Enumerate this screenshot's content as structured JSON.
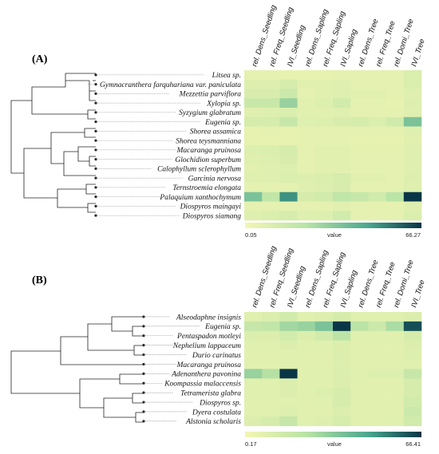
{
  "colors": {
    "low": "#f4f6b3",
    "mid1": "#b8e3a6",
    "mid2": "#49a78e",
    "high": "#083446",
    "tree": "#222222",
    "connector": "#666666"
  },
  "chart_data": [
    {
      "type": "heatmap",
      "panel_label": "(A)",
      "columns": [
        "rel. Dens_Seedling",
        "rel. Freq_Seedling",
        "IVI_Seedling",
        "rel. Dens_Sapling",
        "rel. Freq_Sapling",
        "IVI_Sapling",
        "rel. Dens_Tree",
        "rel. Freq_Tree",
        "rel. Domi_Tree",
        "IVI_Tree"
      ],
      "rows": [
        {
          "label": "Litsea sp.",
          "values": [
            6,
            6,
            5,
            5,
            5,
            6,
            6,
            6,
            6,
            10
          ]
        },
        {
          "label": "Gymnacranthera farquhariana  var. paniculata",
          "values": [
            9,
            9,
            12,
            7,
            7,
            8,
            6,
            6,
            6,
            10
          ]
        },
        {
          "label": "Mezzettia parviflora",
          "values": [
            11,
            11,
            16,
            6,
            7,
            8,
            7,
            7,
            6,
            8
          ]
        },
        {
          "label": "Xylopia sp.",
          "values": [
            17,
            17,
            30,
            7,
            9,
            14,
            6,
            6,
            5,
            9
          ]
        },
        {
          "label": "Syzygium glabratum",
          "values": [
            8,
            9,
            10,
            7,
            7,
            8,
            6,
            6,
            6,
            8
          ]
        },
        {
          "label": "Eugenia sp.",
          "values": [
            12,
            12,
            18,
            8,
            9,
            11,
            12,
            10,
            14,
            36
          ]
        },
        {
          "label": "Shorea assamica",
          "values": [
            5,
            6,
            5,
            6,
            6,
            6,
            6,
            6,
            6,
            8
          ]
        },
        {
          "label": "Shorea teysmanniana",
          "values": [
            5,
            5,
            5,
            6,
            6,
            6,
            5,
            5,
            5,
            7
          ]
        },
        {
          "label": "Macaranga pruinosa",
          "values": [
            9,
            10,
            12,
            6,
            7,
            7,
            6,
            6,
            6,
            8
          ]
        },
        {
          "label": "Glochidion superbum",
          "values": [
            8,
            9,
            11,
            6,
            7,
            7,
            6,
            6,
            6,
            8
          ]
        },
        {
          "label": "Calophyllum sclerophyllum",
          "values": [
            7,
            8,
            9,
            6,
            7,
            7,
            6,
            6,
            6,
            8
          ]
        },
        {
          "label": "Garcinia nervosa",
          "values": [
            8,
            8,
            10,
            9,
            10,
            12,
            7,
            7,
            6,
            9
          ]
        },
        {
          "label": "Ternstroemia elongata",
          "values": [
            6,
            6,
            6,
            8,
            9,
            11,
            6,
            6,
            6,
            8
          ]
        },
        {
          "label": "Palaquium xanthochymum",
          "values": [
            36,
            20,
            50,
            12,
            14,
            20,
            18,
            14,
            22,
            66
          ]
        },
        {
          "label": "Diospyros maingayi",
          "values": [
            6,
            6,
            6,
            6,
            6,
            7,
            6,
            6,
            6,
            8
          ]
        },
        {
          "label": "Diospyros siamang",
          "values": [
            8,
            10,
            12,
            8,
            9,
            14,
            6,
            6,
            6,
            10
          ]
        }
      ],
      "legend": {
        "min": 0.05,
        "max": 66.27,
        "min_label": "0.05",
        "max_label": "66.27",
        "title": "value"
      }
    },
    {
      "type": "heatmap",
      "panel_label": "(B)",
      "columns": [
        "rel. Dens_Seedling",
        "rel. Freq_Seedling",
        "IVI_Seedling",
        "rel. Dens_Sapling",
        "rel. Freq_Sapling",
        "IVI_Sapling",
        "rel. Dens_Tree",
        "rel. Freq_Tree",
        "rel. Domi_Tree",
        "IVI_Tree"
      ],
      "rows": [
        {
          "label": "Alseodaphne insignis",
          "values": [
            8,
            10,
            14,
            8,
            9,
            12,
            8,
            8,
            8,
            10
          ]
        },
        {
          "label": "Eugenia sp.",
          "values": [
            18,
            20,
            28,
            30,
            36,
            66,
            22,
            16,
            26,
            62
          ]
        },
        {
          "label": "Pentaspadon motleyi",
          "values": [
            10,
            10,
            14,
            10,
            14,
            22,
            8,
            8,
            8,
            12
          ]
        },
        {
          "label": "Nephelium lappaceum",
          "values": [
            8,
            8,
            10,
            8,
            8,
            10,
            7,
            7,
            7,
            10
          ]
        },
        {
          "label": "Durio carinatus",
          "values": [
            7,
            7,
            8,
            7,
            7,
            10,
            7,
            7,
            7,
            9
          ]
        },
        {
          "label": "Macaranga pruinosa",
          "values": [
            7,
            7,
            8,
            7,
            7,
            9,
            7,
            7,
            7,
            8
          ]
        },
        {
          "label": "Adenanthera pavonina",
          "values": [
            30,
            24,
            66,
            8,
            8,
            10,
            8,
            9,
            9,
            18
          ]
        },
        {
          "label": "Koompassia malaccensis",
          "values": [
            8,
            8,
            10,
            7,
            8,
            10,
            7,
            7,
            7,
            12
          ]
        },
        {
          "label": "Tetramerista glabra",
          "values": [
            8,
            8,
            10,
            8,
            9,
            12,
            7,
            7,
            7,
            12
          ]
        },
        {
          "label": "Diospyros sp.",
          "values": [
            7,
            7,
            8,
            7,
            8,
            12,
            7,
            7,
            7,
            14
          ]
        },
        {
          "label": "Dyera costulata",
          "values": [
            7,
            7,
            9,
            7,
            7,
            10,
            7,
            7,
            7,
            16
          ]
        },
        {
          "label": "Alstonia scholaris",
          "values": [
            10,
            12,
            18,
            8,
            9,
            12,
            7,
            7,
            8,
            14
          ]
        }
      ],
      "legend": {
        "min": 0.17,
        "max": 66.41,
        "min_label": "0.17",
        "max_label": "66.41",
        "title": "value"
      }
    }
  ]
}
